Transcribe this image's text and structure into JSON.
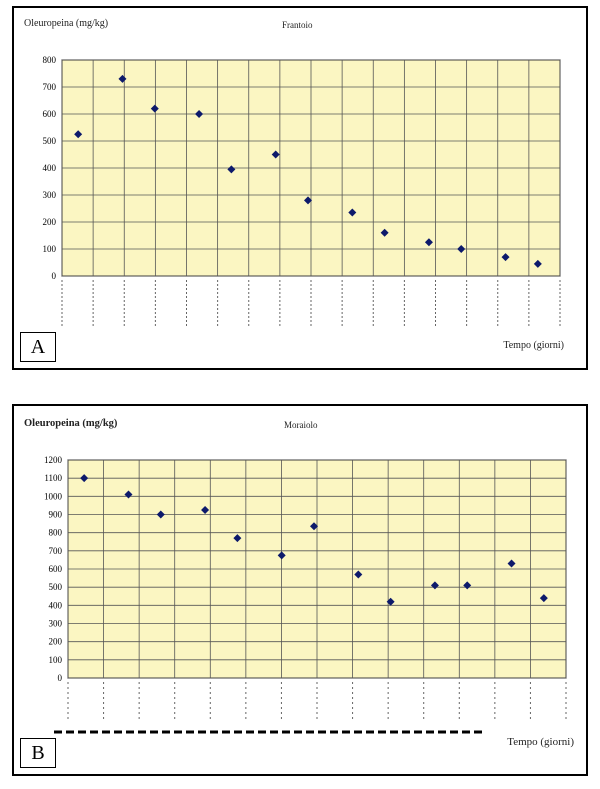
{
  "chart_data": [
    {
      "type": "scatter",
      "panel_tag": "A",
      "title": "Frantoio",
      "ylabel": "Oleuropeina (mg/kg)",
      "xlabel": "Tempo (giorni)",
      "ylim": [
        0,
        800
      ],
      "yticks": [
        0,
        100,
        200,
        300,
        400,
        500,
        600,
        700,
        800
      ],
      "grid": true,
      "points": [
        {
          "x": 1,
          "y": 525
        },
        {
          "x": 2,
          "y": 730
        },
        {
          "x": 3,
          "y": 620
        },
        {
          "x": 4,
          "y": 600
        },
        {
          "x": 5,
          "y": 395
        },
        {
          "x": 6,
          "y": 450
        },
        {
          "x": 7,
          "y": 280
        },
        {
          "x": 8,
          "y": 235
        },
        {
          "x": 9,
          "y": 160
        },
        {
          "x": 10,
          "y": 125
        },
        {
          "x": 11,
          "y": 100
        },
        {
          "x": 12,
          "y": 70
        },
        {
          "x": 13,
          "y": 45
        }
      ],
      "marker_color": "#0d1a6b",
      "plot_bg": "#fbf6c2"
    },
    {
      "type": "scatter",
      "panel_tag": "B",
      "title": "Moraiolo",
      "ylabel": "Oleuropeina (mg/kg)",
      "xlabel": "Tempo (giorni)",
      "ylim": [
        0,
        1200
      ],
      "yticks": [
        0,
        100,
        200,
        300,
        400,
        500,
        600,
        700,
        800,
        900,
        1000,
        1100,
        1200
      ],
      "grid": true,
      "points": [
        {
          "x": 1,
          "y": 1100
        },
        {
          "x": 2,
          "y": 1010
        },
        {
          "x": 3,
          "y": 900
        },
        {
          "x": 4,
          "y": 925
        },
        {
          "x": 5,
          "y": 770
        },
        {
          "x": 6,
          "y": 675
        },
        {
          "x": 7,
          "y": 835
        },
        {
          "x": 8,
          "y": 570
        },
        {
          "x": 9,
          "y": 420
        },
        {
          "x": 10,
          "y": 510
        },
        {
          "x": 11,
          "y": 510
        },
        {
          "x": 12,
          "y": 630
        },
        {
          "x": 13,
          "y": 440
        }
      ],
      "marker_color": "#0d1a6b",
      "plot_bg": "#fbf6c2"
    }
  ]
}
